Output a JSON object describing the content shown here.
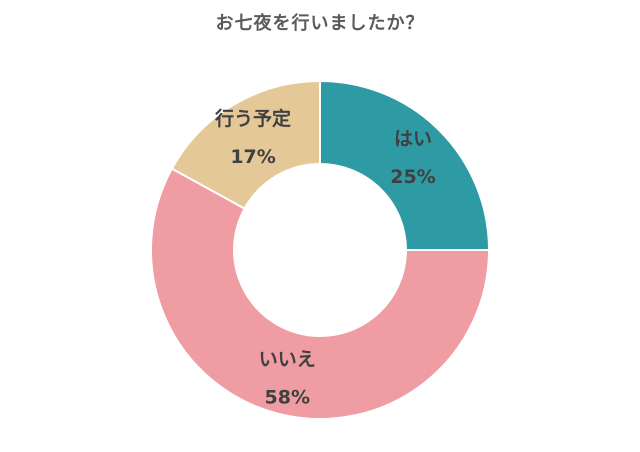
{
  "chart_data": {
    "type": "pie",
    "title": "お七夜を行いましたか？",
    "categories": [
      "はい",
      "いいえ",
      "行う予定"
    ],
    "values": [
      25,
      58,
      17
    ],
    "value_labels": [
      "25%",
      "58%",
      "17%"
    ],
    "colors": [
      "#2e9aa4",
      "#ef9ca3",
      "#e4c897"
    ],
    "start_angle_deg": 0,
    "direction": "clockwise",
    "donut": true
  }
}
